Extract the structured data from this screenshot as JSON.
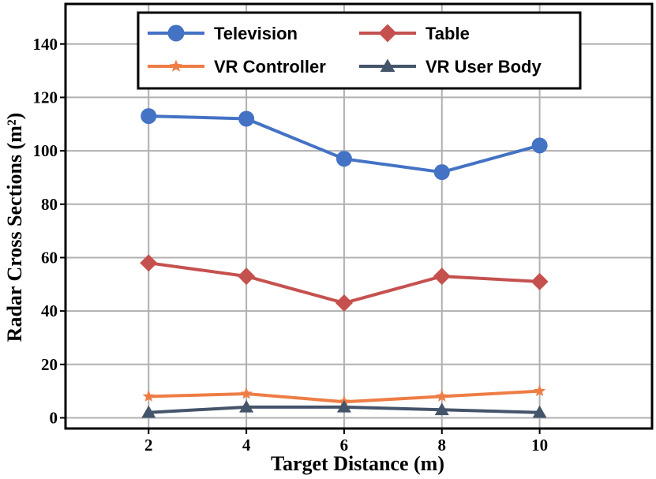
{
  "chart_data": {
    "type": "line",
    "title": "",
    "xlabel": "Target Distance (m)",
    "ylabel": "Radar Cross Sections (m²)",
    "x": [
      2,
      4,
      6,
      8,
      10
    ],
    "xlim": [
      0.3,
      12.3
    ],
    "ylim": [
      -4,
      155
    ],
    "xticks": [
      2,
      4,
      6,
      8,
      10
    ],
    "yticks": [
      0,
      20,
      40,
      60,
      80,
      100,
      120,
      140
    ],
    "grid": true,
    "legend_position": "top",
    "series": [
      {
        "name": "Television",
        "values": [
          113,
          112,
          97,
          92,
          102
        ],
        "color": "#4472c4",
        "marker": "circle"
      },
      {
        "name": "Table",
        "values": [
          58,
          53,
          43,
          53,
          51
        ],
        "color": "#c5514f",
        "marker": "diamond"
      },
      {
        "name": "VR Controller",
        "values": [
          8,
          9,
          6,
          8,
          10
        ],
        "color": "#ee7d45",
        "marker": "star"
      },
      {
        "name": "VR User Body",
        "values": [
          2,
          4,
          4,
          3,
          2
        ],
        "color": "#44546a",
        "marker": "triangle"
      }
    ]
  }
}
